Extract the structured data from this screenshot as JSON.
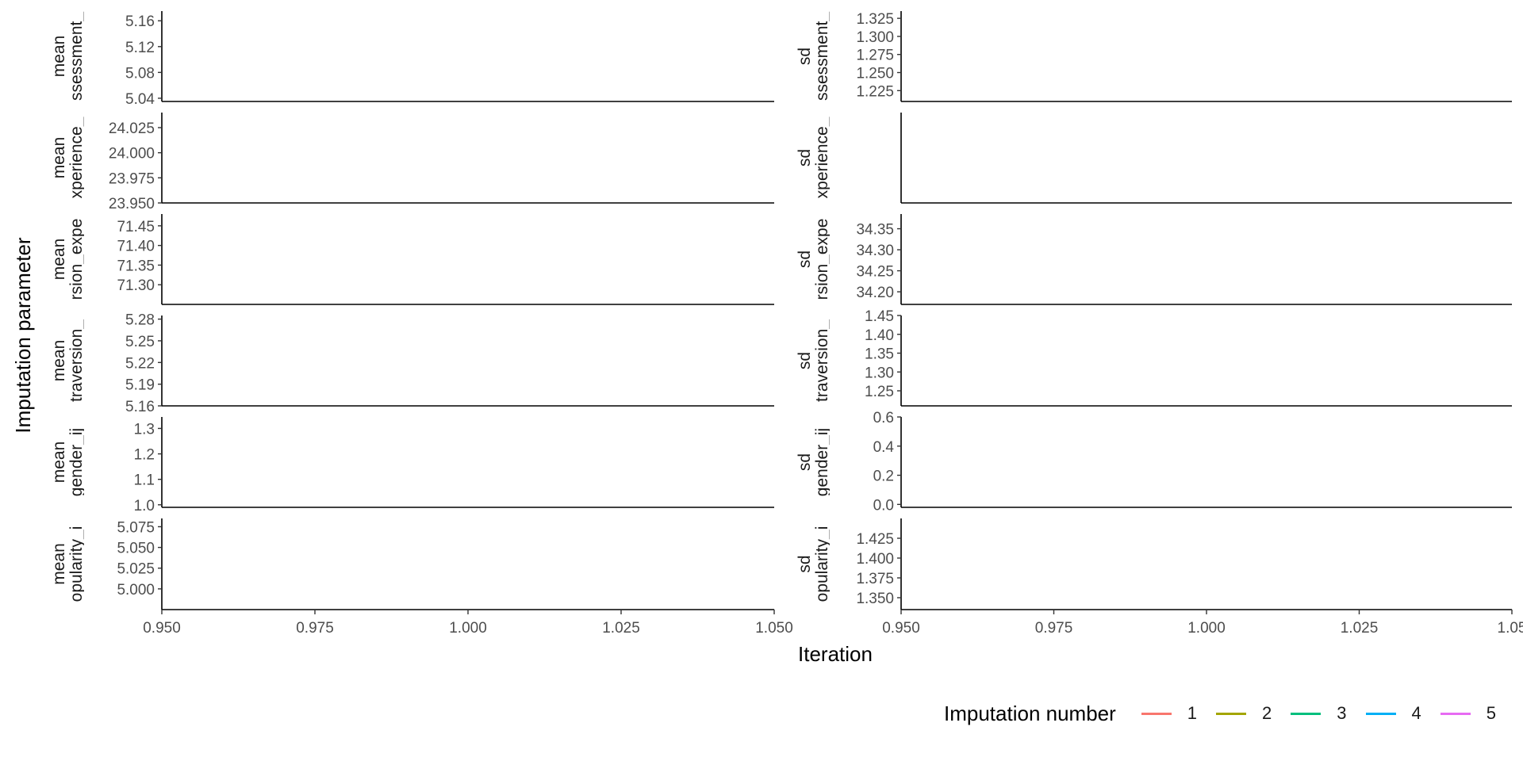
{
  "chart_data": {
    "type": "line",
    "xlabel": "Iteration",
    "ylabel": "Imputation parameter",
    "x_ticks": [
      "0.950",
      "0.975",
      "1.000",
      "1.025",
      "1.050"
    ],
    "x_tick_labels_right": [
      "0.950",
      "0.975",
      "1.000",
      "1.025",
      "1.05"
    ],
    "xlim": [
      0.95,
      1.05
    ],
    "legend": {
      "title": "Imputation number",
      "position": "bottom-right",
      "items": [
        {
          "label": "1",
          "color": "#F8766D"
        },
        {
          "label": "2",
          "color": "#A3A500"
        },
        {
          "label": "3",
          "color": "#00BF7D"
        },
        {
          "label": "4",
          "color": "#00B0F6"
        },
        {
          "label": "5",
          "color": "#E76BF3"
        }
      ]
    },
    "panels": [
      {
        "stat": "mean",
        "var": "ssessment_",
        "ylim": [
          5.035,
          5.175
        ],
        "ticks": [
          5.04,
          5.08,
          5.12,
          5.16
        ],
        "tick_labels": [
          "5.04",
          "5.08",
          "5.12",
          "5.16"
        ]
      },
      {
        "stat": "sd",
        "var": "ssessment_",
        "ylim": [
          1.21,
          1.335
        ],
        "ticks": [
          1.225,
          1.25,
          1.275,
          1.3,
          1.325
        ],
        "tick_labels": [
          "1.225",
          "1.250",
          "1.275",
          "1.300",
          "1.325"
        ]
      },
      {
        "stat": "mean",
        "var": "xperience_",
        "ylim": [
          23.95,
          24.04
        ],
        "ticks": [
          23.95,
          23.975,
          24.0,
          24.025
        ],
        "tick_labels": [
          "23.950",
          "23.975",
          "24.000",
          "24.025"
        ]
      },
      {
        "stat": "sd",
        "var": "xperience_",
        "ylim": [
          0,
          1
        ],
        "ticks": [],
        "tick_labels": []
      },
      {
        "stat": "mean",
        "var": "rsion_expe",
        "ylim": [
          71.25,
          71.48
        ],
        "ticks": [
          71.3,
          71.35,
          71.4,
          71.45
        ],
        "tick_labels": [
          "71.30",
          "71.35",
          "71.40",
          "71.45"
        ]
      },
      {
        "stat": "sd",
        "var": "rsion_expe",
        "ylim": [
          34.17,
          34.385
        ],
        "ticks": [
          34.2,
          34.25,
          34.3,
          34.35
        ],
        "tick_labels": [
          "34.20",
          "34.25",
          "34.30",
          "34.35"
        ]
      },
      {
        "stat": "mean",
        "var": "traversion_",
        "ylim": [
          5.16,
          5.285
        ],
        "ticks": [
          5.16,
          5.19,
          5.22,
          5.25,
          5.28
        ],
        "tick_labels": [
          "5.16",
          "5.19",
          "5.22",
          "5.25",
          "5.28"
        ]
      },
      {
        "stat": "sd",
        "var": "traversion_",
        "ylim": [
          1.21,
          1.45
        ],
        "ticks": [
          1.25,
          1.3,
          1.35,
          1.4,
          1.45
        ],
        "tick_labels": [
          "1.25",
          "1.30",
          "1.35",
          "1.40",
          "1.45"
        ]
      },
      {
        "stat": "mean",
        "var": "gender_ij",
        "ylim": [
          0.99,
          1.345
        ],
        "ticks": [
          1.0,
          1.1,
          1.2,
          1.3
        ],
        "tick_labels": [
          "1.0",
          "1.1",
          "1.2",
          "1.3"
        ]
      },
      {
        "stat": "sd",
        "var": "gender_ij",
        "ylim": [
          -0.02,
          0.6
        ],
        "ticks": [
          0.0,
          0.2,
          0.4,
          0.6
        ],
        "tick_labels": [
          "0.0",
          "0.2",
          "0.4",
          "0.6"
        ]
      },
      {
        "stat": "mean",
        "var": "opularity_i",
        "ylim": [
          4.975,
          5.085
        ],
        "ticks": [
          5.0,
          5.025,
          5.05,
          5.075
        ],
        "tick_labels": [
          "5.000",
          "5.025",
          "5.050",
          "5.075"
        ]
      },
      {
        "stat": "sd",
        "var": "opularity_i",
        "ylim": [
          1.335,
          1.45
        ],
        "ticks": [
          1.35,
          1.375,
          1.4,
          1.425
        ],
        "tick_labels": [
          "1.350",
          "1.375",
          "1.400",
          "1.425"
        ]
      }
    ],
    "series": []
  }
}
